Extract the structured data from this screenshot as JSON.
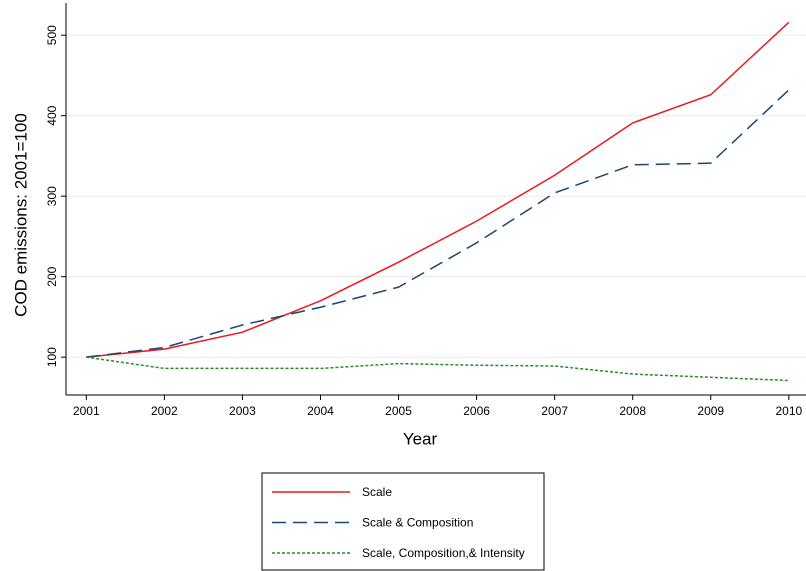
{
  "chart_data": {
    "type": "line",
    "x_label": "Year",
    "y_label": "COD emissions: 2001=100",
    "x": [
      2001,
      2002,
      2003,
      2004,
      2005,
      2006,
      2007,
      2008,
      2009,
      2010
    ],
    "series": [
      {
        "name": "Scale",
        "color": "#e8191f",
        "dash": "solid",
        "values": [
          100,
          110,
          131,
          170,
          218,
          269,
          326,
          391,
          426,
          516
        ]
      },
      {
        "name": "Scale & Composition",
        "color": "#1a476f",
        "dash": "long",
        "values": [
          100,
          112,
          140,
          162,
          187,
          242,
          304,
          339,
          341,
          432
        ]
      },
      {
        "name": "Scale, Composition,& Intensity",
        "color": "#2a8a2a",
        "dash": "short",
        "values": [
          100,
          86,
          86,
          86,
          92,
          90,
          89,
          79,
          75,
          71
        ]
      }
    ],
    "xlim": [
      2000.74,
      2010.22
    ],
    "xticks": [
      2001,
      2002,
      2003,
      2004,
      2005,
      2006,
      2007,
      2008,
      2009,
      2010
    ],
    "ylim": [
      53,
      540
    ],
    "yticks": [
      100,
      200,
      300,
      400,
      500
    ],
    "grid": true,
    "legend": "bottom"
  }
}
